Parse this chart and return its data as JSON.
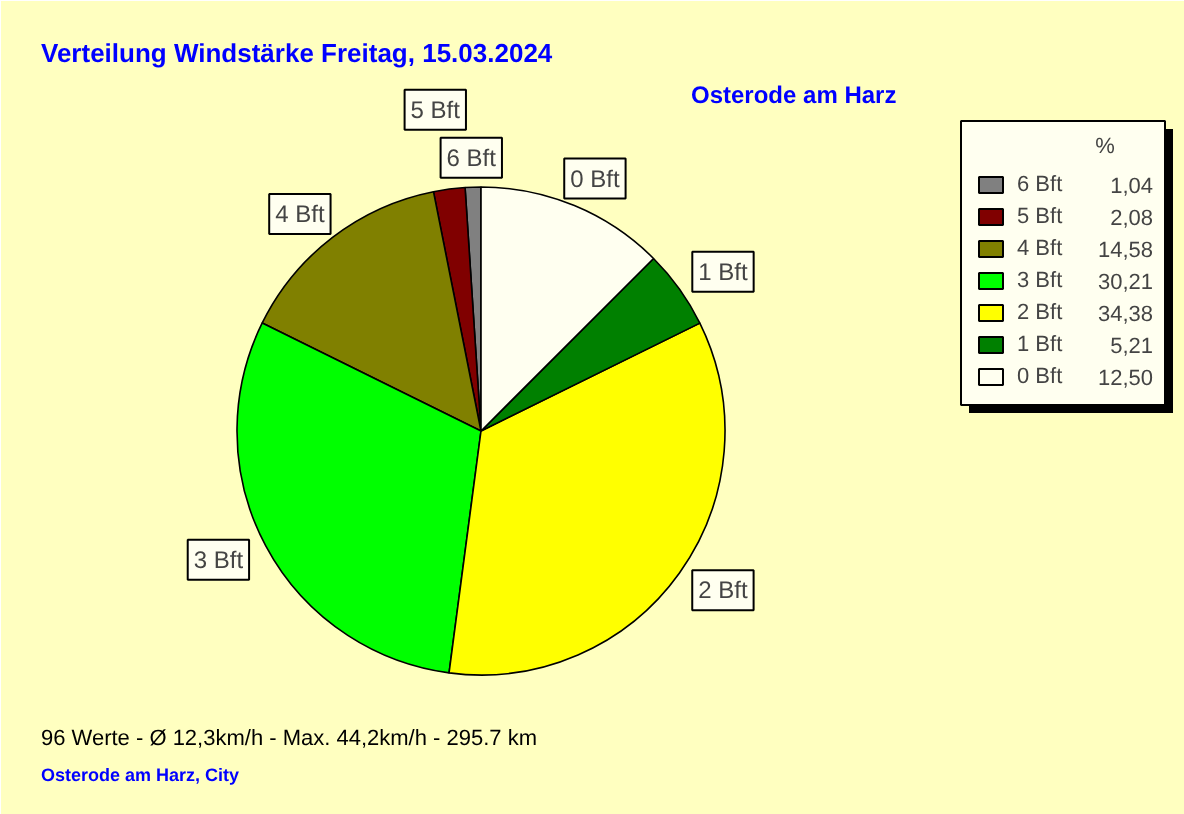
{
  "chart_data": {
    "type": "pie",
    "title": "Verteilung Windstärke  Freitag, 15.03.2024",
    "subtitle": "Osterode am Harz",
    "legend_title": "%",
    "legend": "top right",
    "categories": [
      "6 Bft",
      "5 Bft",
      "4 Bft",
      "3 Bft",
      "2 Bft",
      "1 Bft",
      "0 Bft"
    ],
    "values": [
      1.04,
      2.08,
      14.58,
      30.21,
      34.38,
      5.21,
      12.5
    ],
    "value_labels": [
      "1,04",
      "2,08",
      "14,58",
      "30,21",
      "34,38",
      "5,21",
      "12,50"
    ],
    "colors": [
      "#808080",
      "#800000",
      "#808000",
      "#00ff00",
      "#ffff00",
      "#008000",
      "#fffff0"
    ],
    "annotations": [
      "96 Werte   -   Ø 12,3km/h  -  Max. 44,2km/h   -   295.7 km",
      "Osterode am Harz, City"
    ]
  }
}
